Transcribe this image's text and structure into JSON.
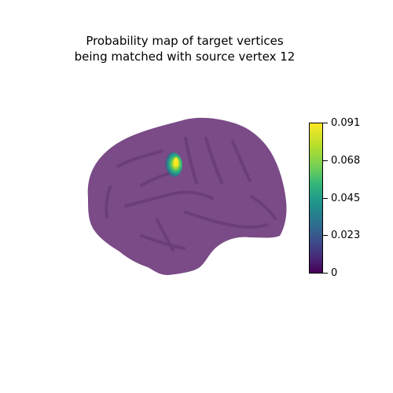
{
  "title": {
    "line1": "Probability map of target vertices",
    "line2": "being matched with source vertex 12"
  },
  "colorbar": {
    "colormap": "viridis",
    "min": 0,
    "max": 0.091,
    "ticks": [
      "0",
      "0.023",
      "0.045",
      "0.068",
      "0.091"
    ],
    "colors": [
      "#440154",
      "#3e4989",
      "#26828e",
      "#35b779",
      "#fde725"
    ]
  },
  "brain": {
    "view": "left lateral",
    "surface_color": "#7a4b87",
    "sulcus_color": "#6b3e79",
    "hotspot_peak_value": 0.091
  }
}
